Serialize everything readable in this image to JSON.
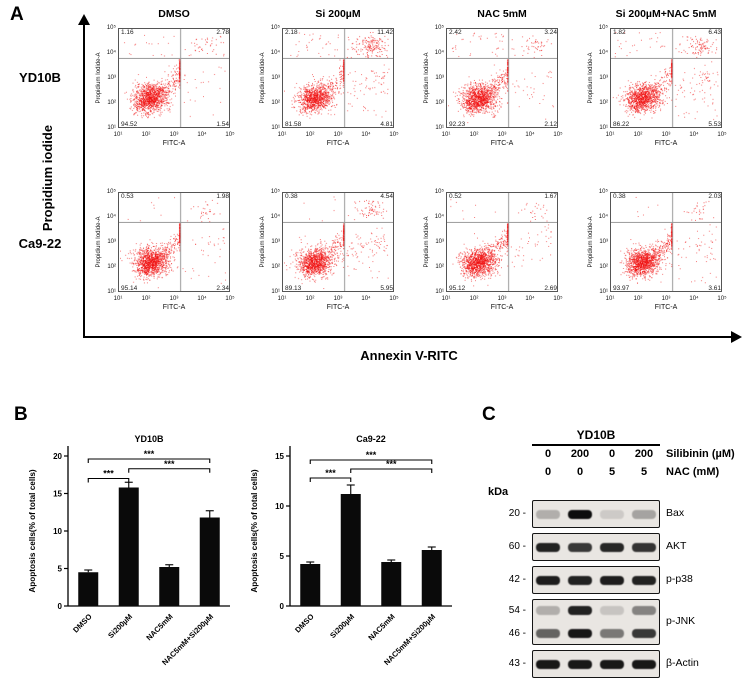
{
  "panel_a": {
    "label": "A",
    "y_axis_label": "Propidium iodide",
    "x_axis_label": "Annexin V-RITC",
    "columns": [
      "DMSO",
      "Si 200µM",
      "NAC 5mM",
      "Si 200µM+NAC 5mM"
    ],
    "rows": [
      "YD10B",
      "Ca9-22"
    ],
    "plot_y_label": "Propidium Iodide-A",
    "plot_x_label": "FITC-A",
    "tick_labels": [
      "10¹",
      "10²",
      "10³",
      "10⁴",
      "10⁵"
    ],
    "dot_color": "#f01111",
    "plots": [
      {
        "row": "YD10B",
        "col": "DMSO",
        "ul": 1.16,
        "ur": 2.78,
        "ll": 94.52,
        "lr": 1.54
      },
      {
        "row": "YD10B",
        "col": "Si 200µM",
        "ul": 2.18,
        "ur": 11.42,
        "ll": 81.58,
        "lr": 4.81
      },
      {
        "row": "YD10B",
        "col": "NAC 5mM",
        "ul": 2.42,
        "ur": 3.24,
        "ll": 92.23,
        "lr": 2.12
      },
      {
        "row": "YD10B",
        "col": "Si 200µM+NAC 5mM",
        "ul": 1.82,
        "ur": 6.43,
        "ll": 86.22,
        "lr": 5.53
      },
      {
        "row": "Ca9-22",
        "col": "DMSO",
        "ul": 0.53,
        "ur": 1.98,
        "ll": 95.14,
        "lr": 2.34
      },
      {
        "row": "Ca9-22",
        "col": "Si 200µM",
        "ul": 0.38,
        "ur": 4.54,
        "ll": 89.13,
        "lr": 5.95
      },
      {
        "row": "Ca9-22",
        "col": "NAC 5mM",
        "ul": 0.52,
        "ur": 1.67,
        "ll": 95.12,
        "lr": 2.69
      },
      {
        "row": "Ca9-22",
        "col": "Si 200µM+NAC 5mM",
        "ul": 0.38,
        "ur": 2.03,
        "ll": 93.97,
        "lr": 3.61
      }
    ]
  },
  "panel_b": {
    "label": "B"
  },
  "chart_data": [
    {
      "type": "bar",
      "title": "YD10B",
      "xlabel": "",
      "ylabel": "Apoptosis cells(% of total cells)",
      "categories": [
        "DMSO",
        "Si200µM",
        "NAC5mM",
        "NAC5mM+Si200µM"
      ],
      "values": [
        4.5,
        15.8,
        5.2,
        11.8
      ],
      "errors": [
        0.3,
        0.7,
        0.3,
        0.9
      ],
      "ylim": [
        0,
        20
      ],
      "yticks": [
        0,
        5,
        10,
        15,
        20
      ],
      "grid": false,
      "legend": "none",
      "bar_color": "#0a0a0a",
      "significance": [
        {
          "from": 0,
          "to": 1,
          "y": 17.0,
          "label": "***"
        },
        {
          "from": 1,
          "to": 3,
          "y": 18.3,
          "label": "***"
        },
        {
          "from": 0,
          "to": 3,
          "y": 19.6,
          "label": "***"
        }
      ]
    },
    {
      "type": "bar",
      "title": "Ca9-22",
      "xlabel": "",
      "ylabel": "Apoptosis cells(% of total cells)",
      "categories": [
        "DMSO",
        "Si200µM",
        "NAC5mM",
        "NAC5mM+Si200µM"
      ],
      "values": [
        4.2,
        11.2,
        4.4,
        5.6
      ],
      "errors": [
        0.2,
        0.9,
        0.2,
        0.3
      ],
      "ylim": [
        0,
        15
      ],
      "yticks": [
        0,
        5,
        10,
        15
      ],
      "grid": false,
      "legend": "none",
      "bar_color": "#0a0a0a",
      "significance": [
        {
          "from": 0,
          "to": 1,
          "y": 12.8,
          "label": "***"
        },
        {
          "from": 1,
          "to": 3,
          "y": 13.7,
          "label": "***"
        },
        {
          "from": 0,
          "to": 3,
          "y": 14.6,
          "label": "***"
        }
      ]
    }
  ],
  "panel_c": {
    "label": "C",
    "cell_line": "YD10B",
    "treatment_rows": [
      {
        "values": [
          "0",
          "200",
          "0",
          "200"
        ],
        "label": "Silibinin (µM)"
      },
      {
        "values": [
          "0",
          "0",
          "5",
          "5"
        ],
        "label": "NAC (mM)"
      }
    ],
    "kda_label": "kDa",
    "blots": [
      {
        "label": "Bax",
        "rows": [
          {
            "kda": "20",
            "intensities": [
              0.25,
              1.0,
              0.12,
              0.3
            ]
          }
        ]
      },
      {
        "label": "AKT",
        "rows": [
          {
            "kda": "60",
            "intensities": [
              0.9,
              0.8,
              0.88,
              0.82
            ]
          }
        ]
      },
      {
        "label": "p-p38",
        "rows": [
          {
            "kda": "42",
            "intensities": [
              0.92,
              0.9,
              0.92,
              0.9
            ]
          }
        ]
      },
      {
        "label": "p-JNK",
        "rows": [
          {
            "kda": "54",
            "intensities": [
              0.25,
              0.9,
              0.15,
              0.45
            ]
          },
          {
            "kda": "46",
            "intensities": [
              0.6,
              0.95,
              0.5,
              0.8
            ]
          }
        ]
      },
      {
        "label": "β-Actin",
        "rows": [
          {
            "kda": "43",
            "intensities": [
              0.95,
              0.95,
              0.95,
              0.95
            ]
          }
        ]
      }
    ]
  }
}
